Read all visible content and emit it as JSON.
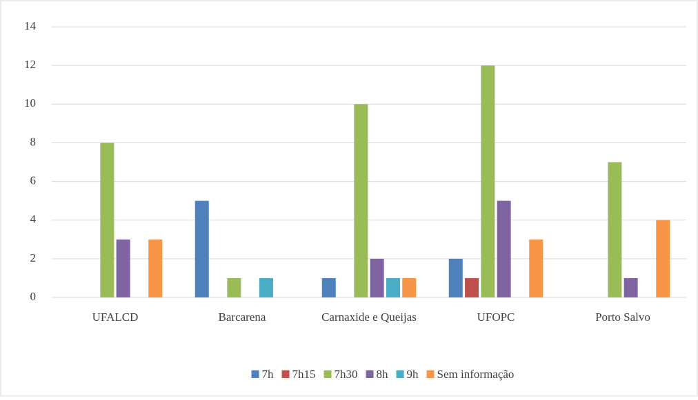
{
  "chart_data": {
    "type": "bar",
    "categories": [
      "UFALCD",
      "Barcarena",
      "Carnaxide e Queijas",
      "UFOPC",
      "Porto Salvo"
    ],
    "series": [
      {
        "name": "7h",
        "color": "#4f81bd",
        "values": [
          0,
          5,
          1,
          2,
          0
        ]
      },
      {
        "name": "7h15",
        "color": "#c0504d",
        "values": [
          0,
          0,
          0,
          1,
          0
        ]
      },
      {
        "name": "7h30",
        "color": "#9bbb59",
        "values": [
          8,
          1,
          10,
          12,
          7
        ]
      },
      {
        "name": "8h",
        "color": "#8064a2",
        "values": [
          3,
          0,
          2,
          5,
          1
        ]
      },
      {
        "name": "9h",
        "color": "#4bacc6",
        "values": [
          0,
          1,
          1,
          0,
          0
        ]
      },
      {
        "name": "Sem informação",
        "color": "#f79646",
        "values": [
          3,
          0,
          1,
          3,
          4
        ]
      }
    ],
    "ylim": [
      0,
      14
    ],
    "yticks": [
      0,
      2,
      4,
      6,
      8,
      10,
      12,
      14
    ],
    "grid": true,
    "legend": "bottom"
  }
}
